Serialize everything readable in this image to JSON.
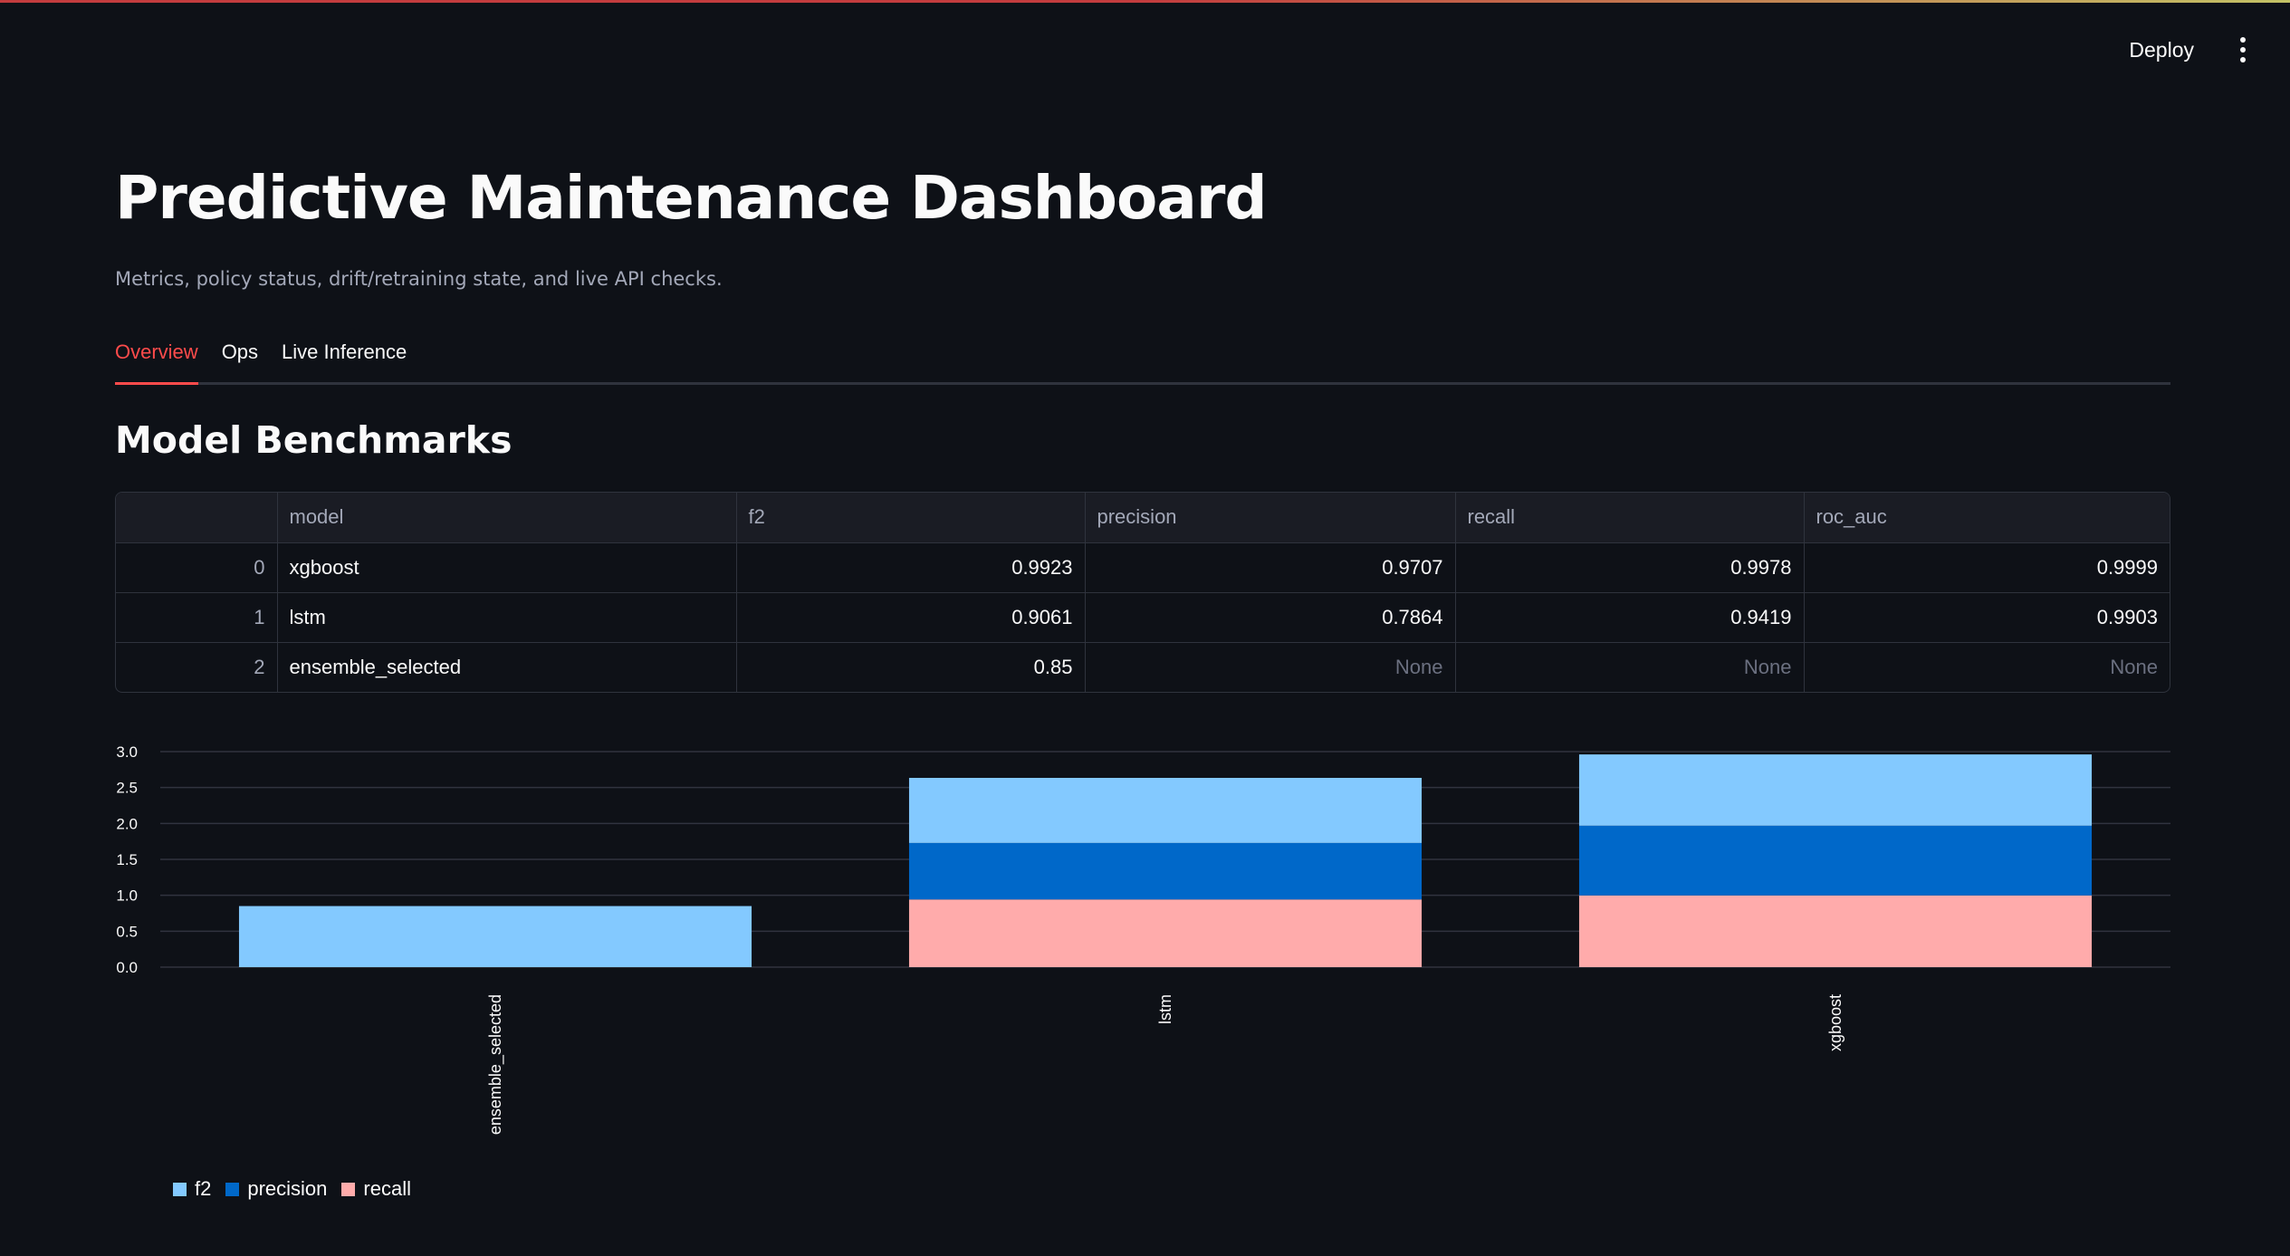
{
  "header": {
    "deploy_label": "Deploy",
    "menu_icon": "kebab-menu-icon"
  },
  "main": {
    "title": "Predictive Maintenance Dashboard",
    "subtitle": "Metrics, policy status, drift/retraining state, and live API checks.",
    "tabs": [
      {
        "label": "Overview",
        "active": true
      },
      {
        "label": "Ops",
        "active": false
      },
      {
        "label": "Live Inference",
        "active": false
      }
    ],
    "section_title": "Model Benchmarks"
  },
  "table": {
    "columns": [
      "",
      "model",
      "f2",
      "precision",
      "recall",
      "roc_auc"
    ],
    "rows": [
      {
        "index": "0",
        "model": "xgboost",
        "f2": "0.9923",
        "precision": "0.9707",
        "recall": "0.9978",
        "roc_auc": "0.9999"
      },
      {
        "index": "1",
        "model": "lstm",
        "f2": "0.9061",
        "precision": "0.7864",
        "recall": "0.9419",
        "roc_auc": "0.9903"
      },
      {
        "index": "2",
        "model": "ensemble_selected",
        "f2": "0.85",
        "precision": "None",
        "recall": "None",
        "roc_auc": "None"
      }
    ]
  },
  "chart_data": {
    "type": "bar",
    "stacked": true,
    "categories": [
      "ensemble_selected",
      "lstm",
      "xgboost"
    ],
    "series": [
      {
        "name": "recall",
        "values": [
          0,
          0.9419,
          0.9978
        ],
        "color": "#ffabab"
      },
      {
        "name": "precision",
        "values": [
          0,
          0.7864,
          0.9707
        ],
        "color": "#0068c9"
      },
      {
        "name": "f2",
        "values": [
          0.85,
          0.9061,
          0.9923
        ],
        "color": "#83c9ff"
      }
    ],
    "legend_order": [
      "f2",
      "precision",
      "recall"
    ],
    "y_ticks": [
      "0.0",
      "0.5",
      "1.0",
      "1.5",
      "2.0",
      "2.5",
      "3.0"
    ],
    "ylim": [
      0,
      3.0
    ],
    "grid": true,
    "legend_position": "bottom-left"
  }
}
